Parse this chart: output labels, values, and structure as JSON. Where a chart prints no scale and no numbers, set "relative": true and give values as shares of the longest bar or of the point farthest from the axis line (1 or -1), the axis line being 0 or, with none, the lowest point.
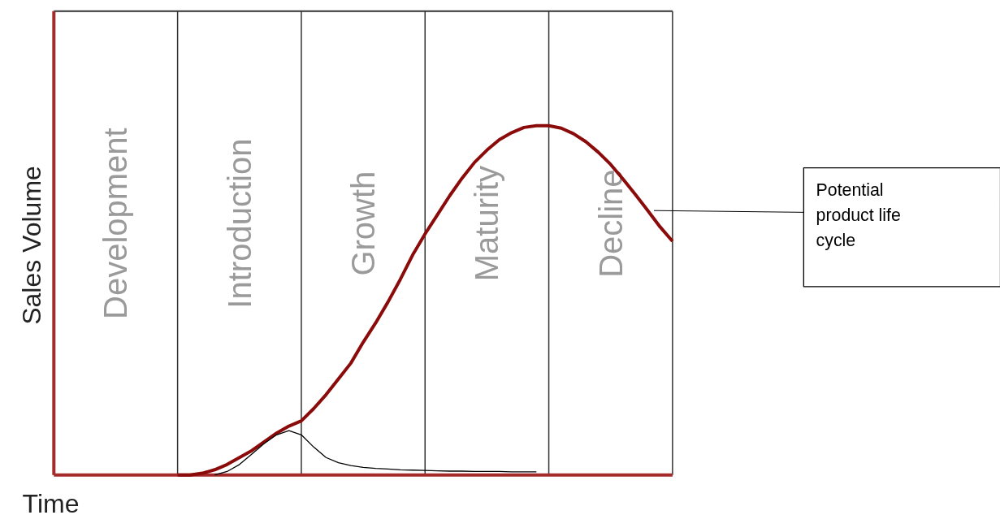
{
  "chart_data": {
    "type": "line",
    "relative": true,
    "xlabel": "Time",
    "ylabel": "Sales Volume",
    "categories": [
      null,
      null,
      null,
      null,
      null,
      null,
      null,
      null,
      null,
      null,
      null,
      null,
      null,
      null,
      null,
      null,
      null,
      null,
      null,
      null,
      null,
      null,
      null,
      null,
      null,
      null,
      null,
      null,
      null,
      null,
      null,
      null,
      null,
      null,
      null,
      null,
      null,
      null,
      null,
      null,
      null,
      null,
      null,
      null,
      null,
      null,
      null,
      null,
      null,
      null,
      null
    ],
    "grid": "x",
    "annotations": [
      "Development",
      "Introduction",
      "Growth",
      "Maturity",
      "Decline"
    ],
    "series": [
      {
        "name": "Potential product life cycle",
        "color": "#8b0a0a",
        "values": [
          null,
          null,
          null,
          null,
          null,
          null,
          null,
          null,
          null,
          null,
          0,
          0,
          0.005,
          0.015,
          0.03,
          0.05,
          0.07,
          0.095,
          0.12,
          0.14,
          0.155,
          0.19,
          0.23,
          0.275,
          0.32,
          0.38,
          0.435,
          0.495,
          0.56,
          0.63,
          0.69,
          0.745,
          0.8,
          0.85,
          0.895,
          0.93,
          0.96,
          0.98,
          0.995,
          1,
          1,
          0.993,
          0.977,
          0.954,
          0.924,
          0.889,
          0.847,
          0.803,
          0.757,
          0.71,
          0.669
        ]
      },
      {
        "color": "#000000",
        "values": [
          null,
          null,
          null,
          null,
          null,
          null,
          null,
          null,
          null,
          null,
          null,
          null,
          null,
          0,
          0.01,
          0.03,
          0.06,
          0.09,
          0.115,
          0.127,
          0.115,
          0.08,
          0.05,
          0.035,
          0.027,
          0.022,
          0.019,
          0.017,
          0.015,
          0.014,
          0.013,
          0.012,
          0.011,
          0.011,
          0.01,
          0.01,
          0.01,
          0.009,
          0.009,
          0.009,
          null,
          null,
          null,
          null,
          null,
          null,
          null,
          null,
          null,
          null,
          null
        ]
      }
    ]
  }
}
